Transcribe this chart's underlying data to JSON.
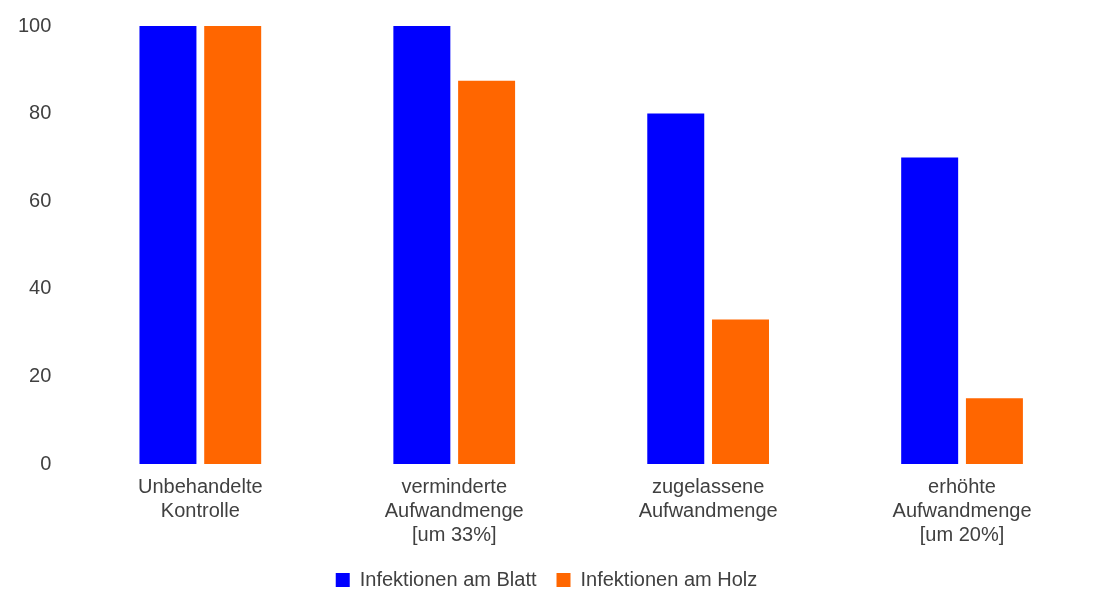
{
  "chart_data": {
    "type": "bar",
    "categories": [
      "Unbehandelte\nKontrolle",
      "verminderte\nAufwandmenge\n[um 33%]",
      "zugelassene\nAufwandmenge",
      "erhöhte\nAufwandmenge\n[um 20%]"
    ],
    "series": [
      {
        "name": "Infektionen am Blatt",
        "color": "#0000ff",
        "values": [
          100,
          100,
          80,
          70
        ]
      },
      {
        "name": "Infektionen am Holz",
        "color": "#ff6600",
        "values": [
          100,
          87.5,
          33,
          15
        ]
      }
    ],
    "ylim": [
      0,
      100
    ],
    "yticks": [
      0,
      20,
      40,
      60,
      80,
      100
    ],
    "grid": false,
    "legend": "bottom"
  }
}
